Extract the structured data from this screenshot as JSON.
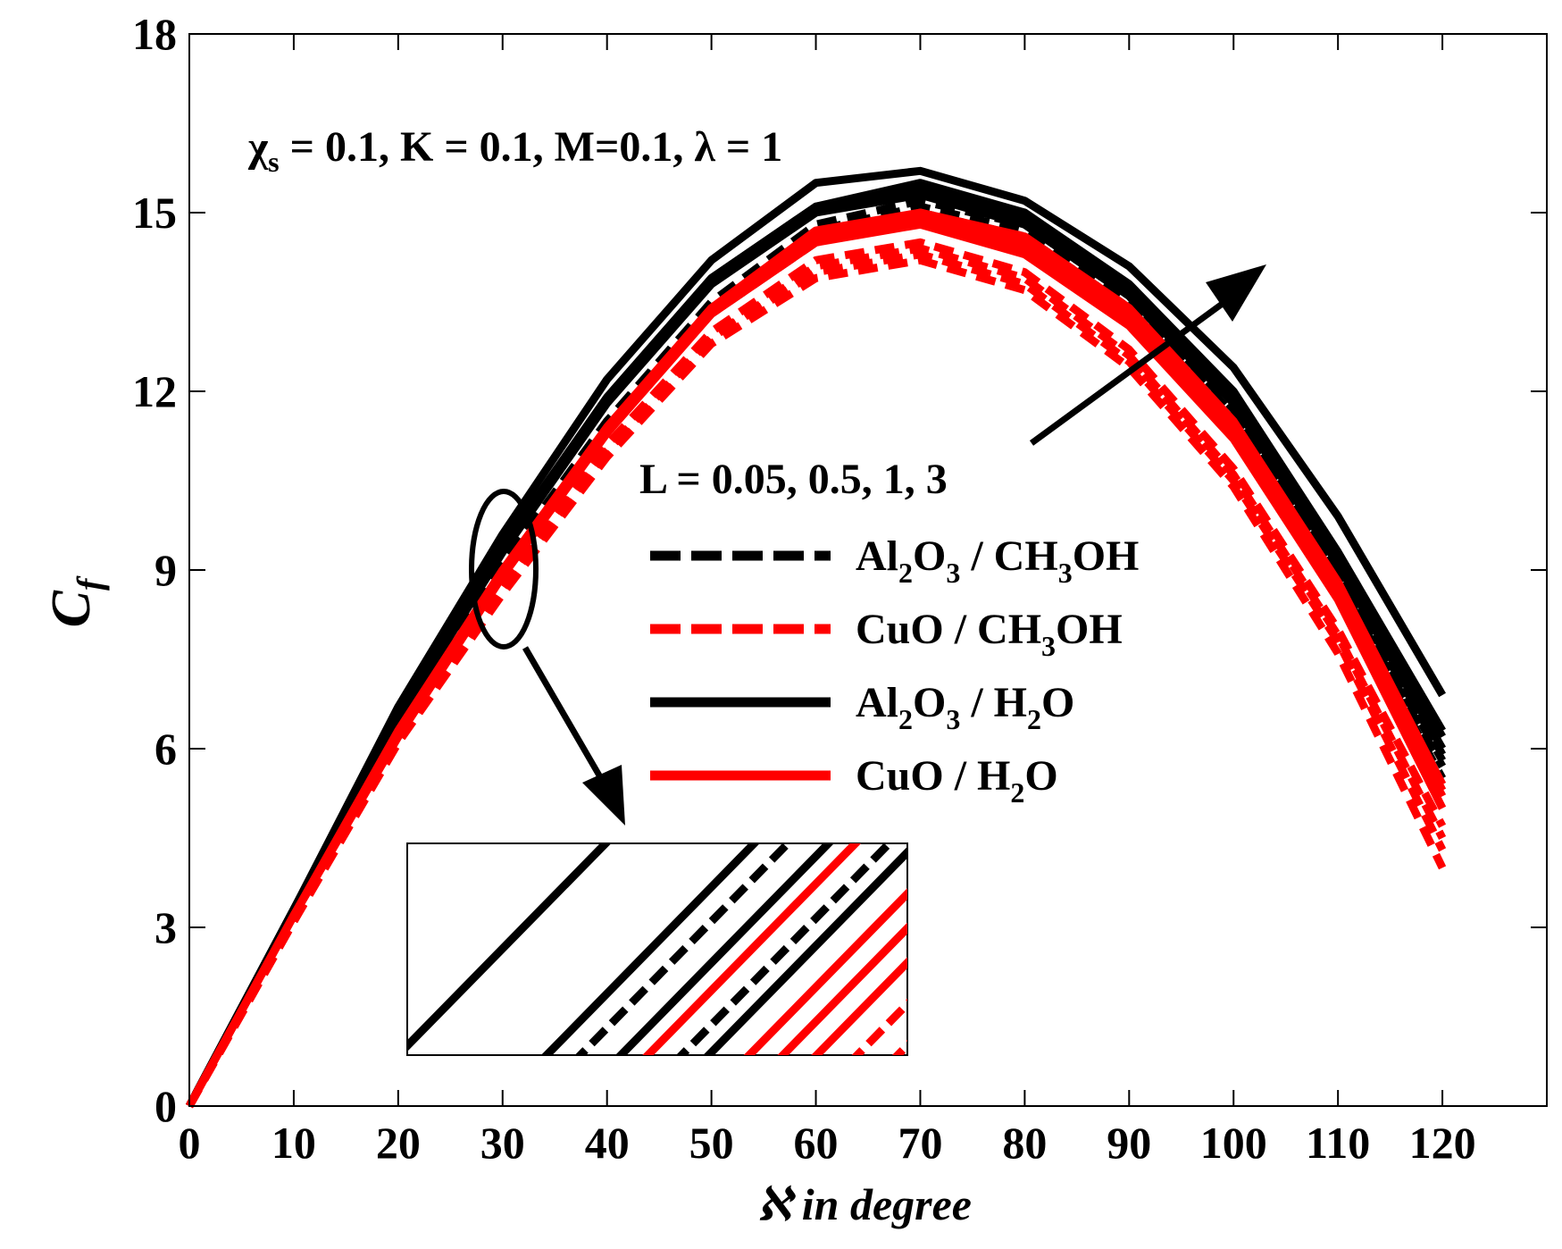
{
  "chart_data": {
    "type": "line",
    "title": "",
    "xlabel_symbol": "ℵ",
    "xlabel_text": " in degree",
    "ylabel_main": "C",
    "ylabel_sub": "f",
    "xlim": [
      0,
      130
    ],
    "ylim": [
      0,
      18
    ],
    "xticks": [
      0,
      10,
      20,
      30,
      40,
      50,
      60,
      70,
      80,
      90,
      100,
      110,
      120
    ],
    "yticks": [
      0,
      3,
      6,
      9,
      12,
      15,
      18
    ],
    "grid": false,
    "parameters_label": {
      "chi": "χ",
      "chi_sub": "s",
      "rest": " = 0.1, K = 0.1, M=0.1, λ = 1"
    },
    "varying_label": "L = 0.05, 0.5, 1, 3",
    "L_values": [
      0.05,
      0.5,
      1,
      3
    ],
    "x": [
      0,
      10,
      20,
      30,
      40,
      50,
      60,
      70,
      80,
      90,
      100,
      110,
      120
    ],
    "series": [
      {
        "name": "Al2O3 / CH3OH",
        "color": "#000000",
        "dash": true,
        "curves": [
          [
            0,
            3.2,
            6.3,
            9.0,
            11.4,
            13.3,
            14.5,
            14.9,
            14.5,
            13.3,
            11.4,
            8.7,
            5.5
          ],
          [
            0,
            3.2,
            6.3,
            9.0,
            11.4,
            13.4,
            14.6,
            15.0,
            14.6,
            13.4,
            11.5,
            8.8,
            5.7
          ],
          [
            0,
            3.2,
            6.3,
            9.1,
            11.5,
            13.4,
            14.7,
            15.1,
            14.7,
            13.5,
            11.6,
            8.9,
            5.8
          ],
          [
            0,
            3.2,
            6.4,
            9.1,
            11.5,
            13.5,
            14.8,
            15.2,
            14.8,
            13.6,
            11.7,
            9.0,
            5.9
          ]
        ]
      },
      {
        "name": "CuO / CH3OH",
        "color": "#ff0000",
        "dash": true,
        "curves": [
          [
            0,
            3.1,
            6.1,
            8.6,
            10.9,
            12.8,
            13.9,
            14.2,
            13.7,
            12.4,
            10.4,
            7.6,
            4.0
          ],
          [
            0,
            3.1,
            6.1,
            8.7,
            11.0,
            12.9,
            14.0,
            14.3,
            13.8,
            12.5,
            10.5,
            7.8,
            4.3
          ],
          [
            0,
            3.1,
            6.2,
            8.7,
            11.0,
            12.9,
            14.1,
            14.4,
            13.9,
            12.6,
            10.6,
            7.9,
            4.5
          ],
          [
            0,
            3.1,
            6.2,
            8.8,
            11.1,
            13.0,
            14.2,
            14.5,
            14.0,
            12.7,
            10.7,
            8.0,
            4.7
          ]
        ]
      },
      {
        "name": "Al2O3 / H2O",
        "color": "#000000",
        "dash": false,
        "curves": [
          [
            0,
            3.3,
            6.5,
            9.3,
            11.8,
            13.8,
            15.0,
            15.3,
            14.8,
            13.6,
            11.8,
            9.1,
            6.0
          ],
          [
            0,
            3.3,
            6.5,
            9.4,
            11.9,
            13.9,
            15.1,
            15.4,
            14.9,
            13.7,
            11.9,
            9.2,
            6.2
          ],
          [
            0,
            3.3,
            6.6,
            9.4,
            11.9,
            13.9,
            15.1,
            15.5,
            15.0,
            13.8,
            12.0,
            9.3,
            6.3
          ],
          [
            0,
            3.3,
            6.7,
            9.6,
            12.2,
            14.2,
            15.5,
            15.7,
            15.2,
            14.1,
            12.4,
            9.9,
            6.9
          ]
        ]
      },
      {
        "name": "CuO / H2O",
        "color": "#ff0000",
        "dash": false,
        "curves": [
          [
            0,
            3.2,
            6.2,
            8.9,
            11.3,
            13.3,
            14.5,
            14.8,
            14.3,
            13.1,
            11.2,
            8.5,
            5.0
          ],
          [
            0,
            3.2,
            6.2,
            8.9,
            11.3,
            13.3,
            14.5,
            14.9,
            14.4,
            13.2,
            11.3,
            8.6,
            5.2
          ],
          [
            0,
            3.2,
            6.3,
            9.0,
            11.4,
            13.4,
            14.6,
            15.0,
            14.5,
            13.3,
            11.4,
            8.7,
            5.3
          ],
          [
            0,
            3.2,
            6.3,
            9.0,
            11.4,
            13.4,
            14.7,
            15.0,
            14.6,
            13.4,
            11.5,
            8.8,
            5.4
          ]
        ]
      }
    ],
    "legend": [
      {
        "name": "Al2O3 / CH3OH",
        "color": "#000000",
        "dash": true,
        "parts": [
          {
            "t": "Al"
          },
          {
            "t": "2",
            "sub": true
          },
          {
            "t": "O"
          },
          {
            "t": "3",
            "sub": true
          },
          {
            "t": " / CH"
          },
          {
            "t": "3",
            "sub": true
          },
          {
            "t": "OH"
          }
        ]
      },
      {
        "name": "CuO / CH3OH",
        "color": "#ff0000",
        "dash": true,
        "parts": [
          {
            "t": "CuO / CH"
          },
          {
            "t": "3",
            "sub": true
          },
          {
            "t": "OH"
          }
        ]
      },
      {
        "name": "Al2O3 / H2O",
        "color": "#000000",
        "dash": false,
        "parts": [
          {
            "t": "Al"
          },
          {
            "t": "2",
            "sub": true
          },
          {
            "t": "O"
          },
          {
            "t": "3",
            "sub": true
          },
          {
            "t": " / H"
          },
          {
            "t": "2",
            "sub": true
          },
          {
            "t": "O"
          }
        ]
      },
      {
        "name": "CuO / H2O",
        "color": "#ff0000",
        "dash": false,
        "parts": [
          {
            "t": "CuO / H"
          },
          {
            "t": "2",
            "sub": true
          },
          {
            "t": "O"
          }
        ]
      }
    ],
    "inset": {
      "description": "zoom near x = 30",
      "lines": [
        {
          "color": "#000000",
          "dash": false,
          "offset": 0.0
        },
        {
          "color": "#000000",
          "dash": false,
          "offset": 0.22
        },
        {
          "color": "#000000",
          "dash": true,
          "offset": 0.27
        },
        {
          "color": "#000000",
          "dash": false,
          "offset": 0.33
        },
        {
          "color": "#ff0000",
          "dash": false,
          "offset": 0.37
        },
        {
          "color": "#000000",
          "dash": true,
          "offset": 0.42
        },
        {
          "color": "#000000",
          "dash": false,
          "offset": 0.46
        },
        {
          "color": "#ff0000",
          "dash": false,
          "offset": 0.52
        },
        {
          "color": "#ff0000",
          "dash": false,
          "offset": 0.57
        },
        {
          "color": "#ff0000",
          "dash": false,
          "offset": 0.62
        },
        {
          "color": "#ff0000",
          "dash": true,
          "offset": 0.68
        },
        {
          "color": "#ff0000",
          "dash": true,
          "offset": 0.74
        },
        {
          "color": "#ff0000",
          "dash": true,
          "offset": 0.8
        }
      ]
    }
  }
}
